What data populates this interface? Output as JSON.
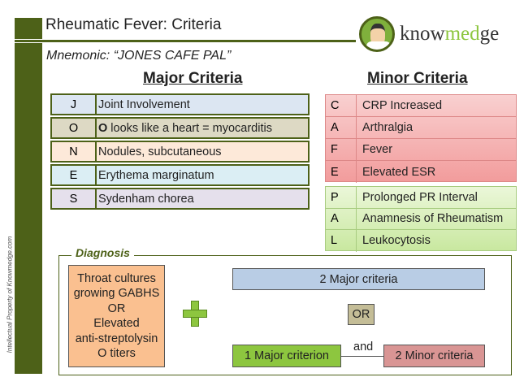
{
  "header": {
    "title": "Rheumatic Fever: Criteria",
    "mnemonic": "Mnemonic:  “JONES CAFE PAL”",
    "logo_text_a": "know",
    "logo_text_b": "med",
    "logo_text_c": "ge"
  },
  "watermark": "Intellectual  Property of Knowmedge.com",
  "major": {
    "heading": "Major Criteria",
    "rows": [
      {
        "letter": "J",
        "bold": "",
        "text": "Joint Involvement",
        "color": "#dce6f2"
      },
      {
        "letter": "O",
        "bold": "O",
        "text": " looks like a heart = myocarditis",
        "color": "#ddd9c4"
      },
      {
        "letter": "N",
        "bold": "",
        "text": "Nodules, subcutaneous",
        "color": "#fde9d9"
      },
      {
        "letter": "E",
        "bold": "",
        "text": "Erythema marginatum",
        "color": "#dbeef4"
      },
      {
        "letter": "S",
        "bold": "",
        "text": "Sydenham chorea",
        "color": "#e5e0ec"
      }
    ]
  },
  "minor": {
    "heading": "Minor Criteria",
    "red_rows": [
      {
        "letter": "C",
        "text": "CRP Increased"
      },
      {
        "letter": "A",
        "text": "Arthralgia"
      },
      {
        "letter": "F",
        "text": "Fever"
      },
      {
        "letter": "E",
        "text": "Elevated ESR"
      }
    ],
    "green_rows": [
      {
        "letter": "P",
        "text": "Prolonged PR Interval"
      },
      {
        "letter": "A",
        "text": "Anamnesis of Rheumatism"
      },
      {
        "letter": "L",
        "text": "Leukocytosis"
      }
    ]
  },
  "diagnosis": {
    "label": "Diagnosis",
    "evidence": [
      "Throat cultures",
      "growing GABHS",
      "OR",
      "Elevated",
      "anti-streptolysin",
      "O titers"
    ],
    "two_major": "2 Major criteria",
    "or": "OR",
    "one_major": "1 Major criterion",
    "and": "and",
    "two_minor": "2 Minor criteria"
  }
}
